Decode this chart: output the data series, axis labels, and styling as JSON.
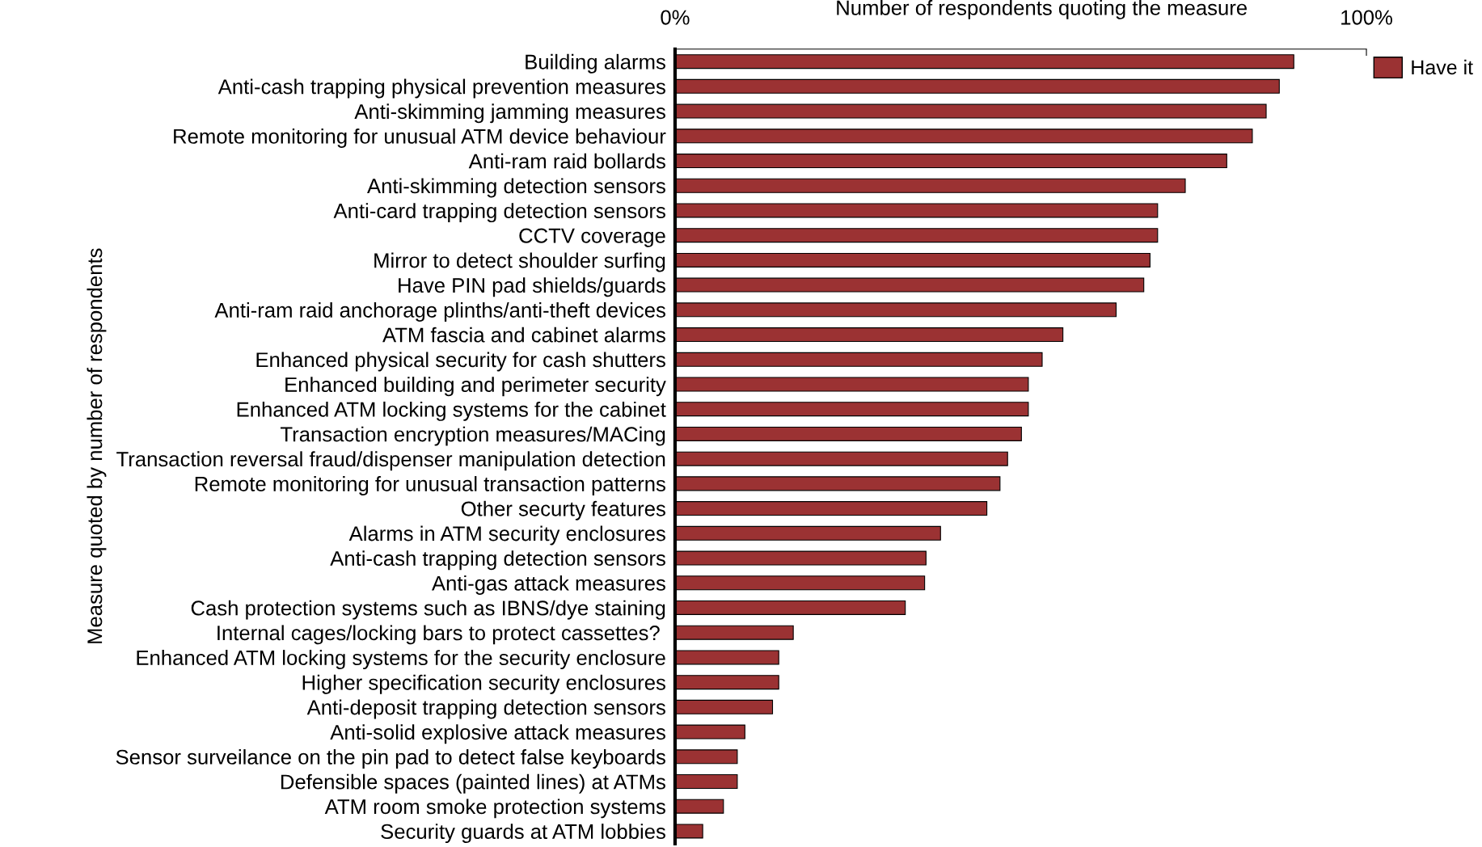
{
  "chart_data": {
    "type": "bar",
    "orientation": "horizontal",
    "xlabel": "Number of respondents quoting the measure",
    "ylabel": "Measure quoted by number of respondents",
    "categories": [
      "Building alarms",
      "Anti-cash trapping physical prevention measures",
      "Anti-skimming jamming measures",
      "Remote monitoring for unusual ATM device behaviour",
      "Anti-ram raid bollards",
      "Anti-skimming detection sensors",
      "Anti-card trapping detection sensors",
      "CCTV coverage",
      "Mirror to detect shoulder surfing",
      "Have PIN pad shields/guards",
      "Anti-ram raid anchorage plinths/anti-theft devices",
      "ATM fascia and cabinet alarms",
      "Enhanced physical security for cash shutters",
      "Enhanced building and perimeter security",
      "Enhanced ATM locking systems for the cabinet",
      "Transaction encryption measures/MACing",
      "Transaction reversal fraud/dispenser manipulation detection",
      "Remote monitoring for unusual transaction patterns",
      "Other securty features",
      "Alarms in ATM security enclosures",
      "Anti-cash trapping detection sensors",
      "Anti-gas attack measures",
      "Cash protection systems such as IBNS/dye staining",
      "Internal cages/locking bars to protect cassettes? ",
      "Enhanced ATM locking systems for the security enclosure",
      "Higher specification security enclosures",
      "Anti-deposit trapping detection sensors",
      "Anti-solid explosive attack measures",
      "Sensor surveilance on the pin pad to detect false keyboards",
      "Defensible spaces (painted lines) at ATMs",
      "ATM room smoke protection systems",
      "Security guards at ATM lobbies"
    ],
    "series": [
      {
        "name": "Have it",
        "color": "#9b3233",
        "values": [
          89.5,
          87.4,
          85.5,
          83.5,
          79.8,
          73.8,
          69.8,
          69.8,
          68.7,
          67.8,
          63.8,
          56.1,
          53.1,
          51.1,
          51.1,
          50.1,
          48.1,
          47.0,
          45.1,
          38.4,
          36.3,
          36.1,
          33.3,
          17.1,
          15.0,
          15.0,
          14.1,
          10.1,
          9.0,
          9.0,
          7.0,
          4.0
        ]
      }
    ],
    "xlim": [
      0,
      100
    ],
    "xticks": [
      {
        "value": 0,
        "label": "0%"
      },
      {
        "value": 100,
        "label": "100%"
      }
    ],
    "legend": "top right",
    "grid": false
  }
}
